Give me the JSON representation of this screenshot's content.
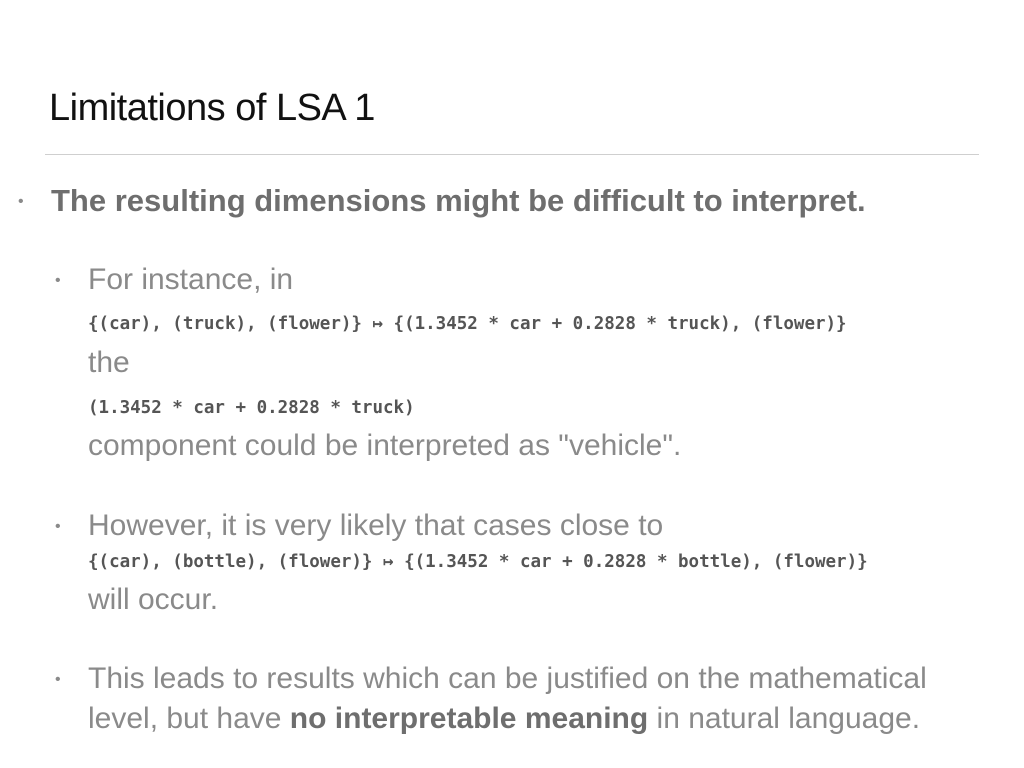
{
  "slide": {
    "title": "Limitations of LSA 1",
    "main_bullet": "The resulting dimensions might be difficult to interpret.",
    "bullet_glyph": "•",
    "sub1": {
      "intro": "For instance, in",
      "code_mapping": "{(car), (truck), (flower)} ↦ {(1.3452 * car + 0.2828 * truck), (flower)}",
      "connector": "the",
      "code_component": "(1.3452 * car + 0.2828 * truck)",
      "conclusion": "component could be interpreted as \"vehicle\"."
    },
    "sub2": {
      "intro": "However, it is very likely that cases close to",
      "code_mapping": "{(car), (bottle), (flower)} ↦ {(1.3452 * car + 0.2828 * bottle), (flower)}",
      "conclusion": "will occur."
    },
    "sub3": {
      "line1": "This leads to results which can be justified on the mathematical",
      "line2_prefix": "level, but have ",
      "line2_bold": "no interpretable meaning",
      "line2_suffix": " in natural language."
    }
  }
}
